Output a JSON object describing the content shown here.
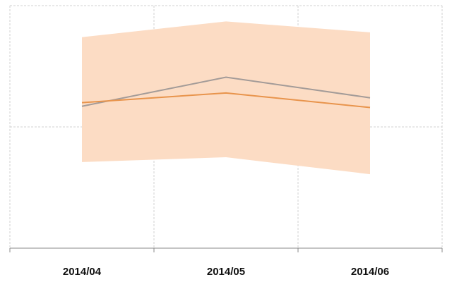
{
  "chart_data": {
    "type": "line",
    "categories": [
      "2014/04",
      "2014/05",
      "2014/06"
    ],
    "band": {
      "color": "#fcdcc4",
      "upper": [
        1.74,
        1.87,
        1.78
      ],
      "lower": [
        0.71,
        0.75,
        0.61
      ]
    },
    "series": [
      {
        "color": "#a39b98",
        "values": [
          1.17,
          1.41,
          1.24
        ]
      },
      {
        "color": "#e8944c",
        "values": [
          1.2,
          1.28,
          1.16
        ]
      }
    ],
    "ylim": [
      0,
      2
    ],
    "yticks": [
      0,
      1,
      2
    ],
    "grid": true
  }
}
